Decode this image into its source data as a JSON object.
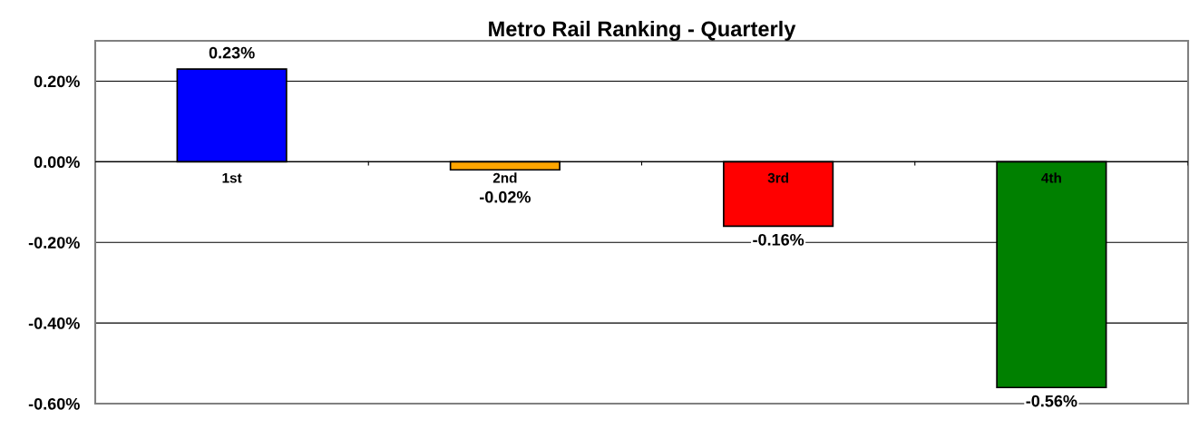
{
  "chart_data": {
    "type": "bar",
    "title": "Metro Rail Ranking - Quarterly",
    "categories": [
      "1st",
      "2nd",
      "3rd",
      "4th"
    ],
    "values": [
      0.23,
      -0.02,
      -0.16,
      -0.56
    ],
    "colors": [
      "#0000ff",
      "#ffa500",
      "#ff0000",
      "#008000"
    ],
    "value_labels": [
      "0.23%",
      "-0.02%",
      "-0.16%",
      "-0.56%"
    ],
    "ylim": [
      -0.6,
      0.3
    ],
    "yticks": [
      {
        "value": -0.6,
        "label": "-0.60%"
      },
      {
        "value": -0.4,
        "label": "-0.40%"
      },
      {
        "value": -0.2,
        "label": "-0.20%"
      },
      {
        "value": 0,
        "label": "0.00%"
      },
      {
        "value": 0.2,
        "label": "0.20%"
      }
    ],
    "grid": "y",
    "legend": false
  }
}
